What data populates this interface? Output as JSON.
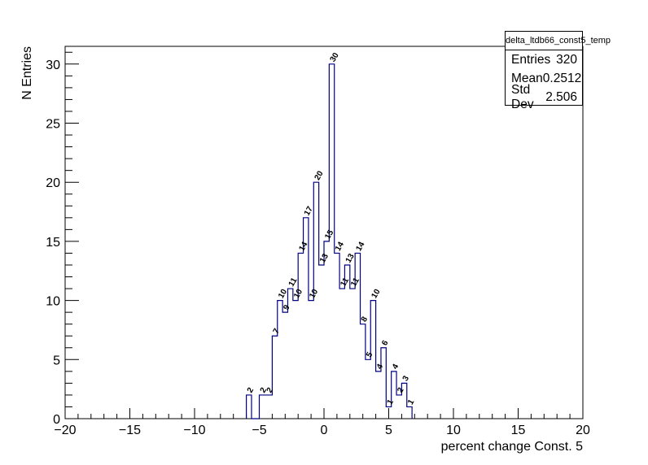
{
  "chart_data": {
    "type": "bar",
    "histogram_style": "step",
    "x_bin_edges": [
      -6,
      -5.6,
      -5,
      -4.6,
      -4,
      -3.6,
      -3.2,
      -2.8,
      -2.4,
      -2,
      -1.6,
      -1.2,
      -0.8,
      -0.4,
      0,
      0.4,
      0.8,
      1.2,
      1.6,
      2,
      2.4,
      2.8,
      3.2,
      3.6,
      4,
      4.4,
      4.8,
      5.2,
      5.6,
      6,
      6.4,
      6.8
    ],
    "bin_counts": [
      2,
      0,
      2,
      2,
      7,
      10,
      9,
      11,
      10,
      14,
      17,
      10,
      20,
      13,
      15,
      30,
      14,
      11,
      13,
      11,
      14,
      8,
      5,
      10,
      4,
      6,
      1,
      4,
      2,
      3,
      1
    ],
    "bin_labels": [
      "2",
      "",
      "2",
      "2",
      "7",
      "10",
      "9",
      "11",
      "10",
      "14",
      "17",
      "10",
      "20",
      "13",
      "15",
      "30",
      "14",
      "11",
      "13",
      "11",
      "14",
      "8",
      "5",
      "10",
      "4",
      "6",
      "1",
      "4",
      "2",
      "3",
      "1"
    ],
    "xlabel": "percent change Const. 5",
    "ylabel": "N Entries",
    "xlim": [
      -20,
      20
    ],
    "ylim": [
      0,
      31.5
    ],
    "x_ticks": [
      "−20",
      "−15",
      "−10",
      "−5",
      "0",
      "5",
      "10",
      "15",
      "20"
    ],
    "y_ticks": [
      "0",
      "5",
      "10",
      "15",
      "20",
      "25",
      "30"
    ],
    "grid": false,
    "line_color": "#000080"
  },
  "stats_box": {
    "title": "delta_ltdb66_const5_temp",
    "rows": [
      {
        "label": "Entries",
        "value": "320"
      },
      {
        "label": "Mean",
        "value": "0.2512"
      },
      {
        "label": "Std Dev",
        "value": "2.506"
      }
    ]
  }
}
